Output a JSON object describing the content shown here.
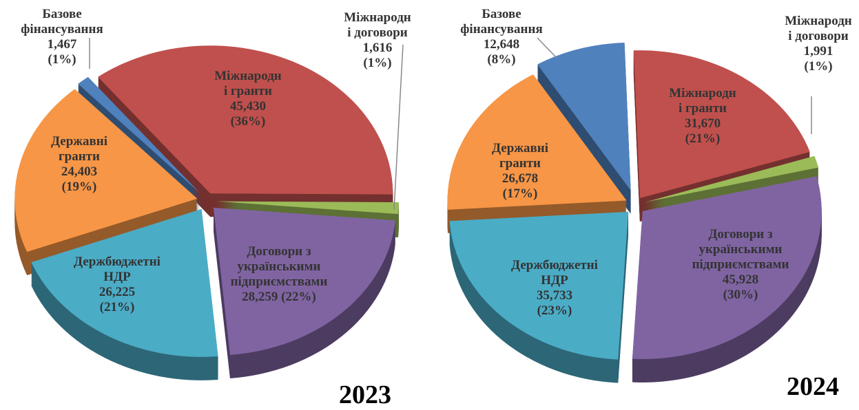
{
  "chart_data": [
    {
      "type": "pie",
      "title": "2023",
      "categories": [
        "Міжнародн\nі гранти",
        "Міжнародн\nі договори",
        "Договори з\nукраїнськими\nпідприємствами",
        "Держбюджетні\nНДР",
        "Державні\nгранти",
        "Базове\nфінансування"
      ],
      "values": [
        45430,
        1616,
        28259,
        26225,
        24403,
        1467
      ],
      "value_labels": [
        "45,430",
        "1,616",
        "28,259",
        "26,225",
        "24,403",
        "1,467"
      ],
      "percent_labels": [
        "(36%)",
        "(1%)",
        "(22%)",
        "(21%)",
        "(19%)",
        "(1%)"
      ],
      "colors": [
        "#c0504d",
        "#9bbb59",
        "#8064a2",
        "#4bacc6",
        "#f79646",
        "#4f81bd"
      ]
    },
    {
      "type": "pie",
      "title": "2024",
      "categories": [
        "Міжнародн\nі гранти",
        "Міжнародн\nі договори",
        "Договори з\nукраїнськими\nпідприємствами",
        "Держбюджетні\nНДР",
        "Державні\nгранти",
        "Базове\nфінансування"
      ],
      "values": [
        31670,
        1991,
        45928,
        35733,
        26678,
        12648
      ],
      "value_labels": [
        "31,670",
        "1,991",
        "45,928",
        "35,733",
        "26,678",
        "12,648"
      ],
      "percent_labels": [
        "(21%)",
        "(1%)",
        "(30%)",
        "(23%)",
        "(17%)",
        "(8%)"
      ],
      "colors": [
        "#c0504d",
        "#9bbb59",
        "#8064a2",
        "#4bacc6",
        "#f79646",
        "#4f81bd"
      ]
    }
  ]
}
